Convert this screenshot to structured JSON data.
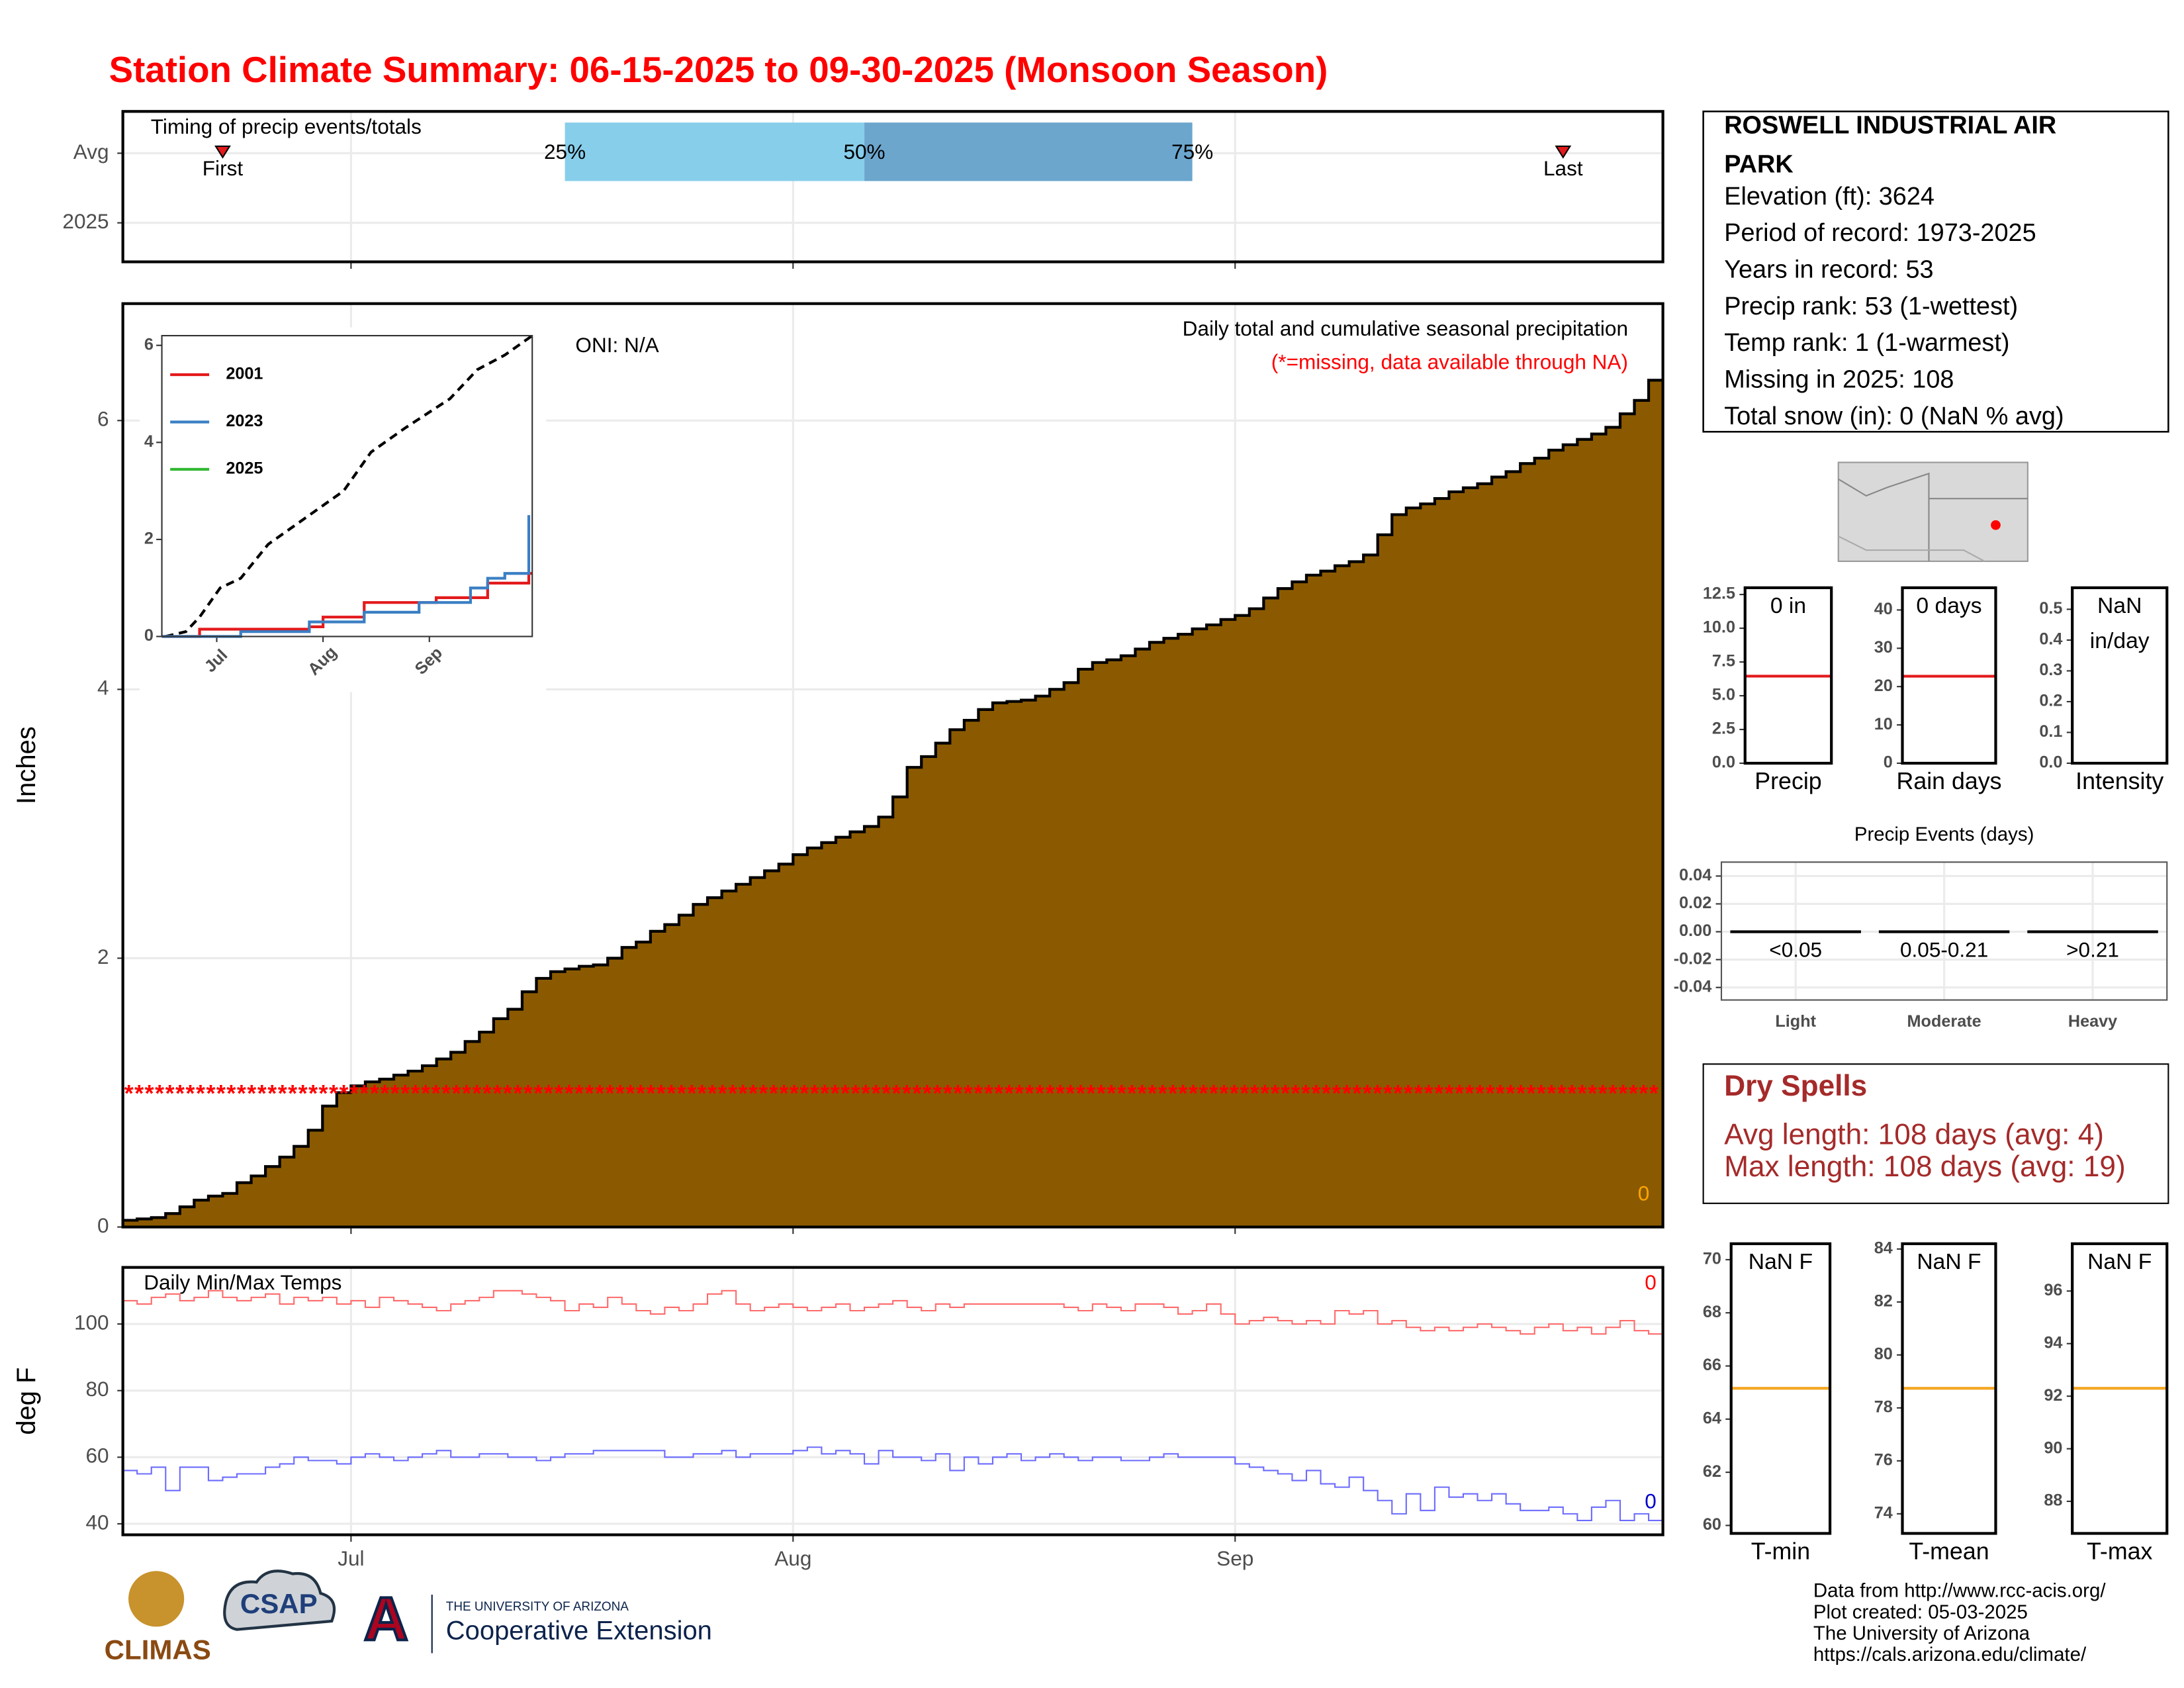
{
  "title": "Station Climate Summary: 06-15-2025 to 09-30-2025 (Monsoon Season)",
  "chart_data": [
    {
      "type": "timing",
      "title": "Timing of precip events/totals",
      "categories": [
        "Avg",
        "2025"
      ],
      "xlim": [
        0,
        108
      ],
      "markers": [
        {
          "label": "First",
          "value": 7
        },
        {
          "label": "Last",
          "value": 101
        }
      ],
      "quartiles": [
        {
          "label": "25%",
          "value": 31
        },
        {
          "label": "50%",
          "value": 52
        },
        {
          "label": "75%",
          "value": 75
        }
      ],
      "colors": [
        "#87ceeb",
        "#6ca6cd"
      ],
      "marker_color": "#e31a1c"
    },
    {
      "type": "step-area",
      "ylabel": "Inches",
      "xlim": [
        0,
        108
      ],
      "ylim": [
        0,
        6.87
      ],
      "yticks": [
        0,
        2,
        4,
        6
      ],
      "grid": true,
      "color": "#8b5a00",
      "annotation": "Daily total and cumulative seasonal precipitation",
      "note": "(*=missing, data available through NA)",
      "oni": "ONI: N/A",
      "missing": {
        "symbol": "*",
        "value": 1
      },
      "count_label": "0",
      "values": [
        0.05,
        0.06,
        0.07,
        0.1,
        0.15,
        0.2,
        0.23,
        0.25,
        0.33,
        0.38,
        0.45,
        0.52,
        0.6,
        0.72,
        0.9,
        1.0,
        1.05,
        1.08,
        1.1,
        1.13,
        1.16,
        1.2,
        1.25,
        1.3,
        1.38,
        1.45,
        1.55,
        1.62,
        1.75,
        1.85,
        1.9,
        1.92,
        1.94,
        1.95,
        2.0,
        2.08,
        2.12,
        2.2,
        2.25,
        2.32,
        2.4,
        2.45,
        2.5,
        2.55,
        2.6,
        2.65,
        2.7,
        2.77,
        2.82,
        2.86,
        2.9,
        2.94,
        2.98,
        3.05,
        3.2,
        3.42,
        3.5,
        3.6,
        3.7,
        3.77,
        3.85,
        3.9,
        3.91,
        3.92,
        3.95,
        4.0,
        4.05,
        4.15,
        4.2,
        4.22,
        4.25,
        4.3,
        4.35,
        4.38,
        4.41,
        4.45,
        4.48,
        4.52,
        4.55,
        4.6,
        4.68,
        4.75,
        4.8,
        4.85,
        4.88,
        4.92,
        4.95,
        5.0,
        5.15,
        5.3,
        5.35,
        5.38,
        5.42,
        5.47,
        5.5,
        5.53,
        5.58,
        5.62,
        5.68,
        5.72,
        5.78,
        5.82,
        5.86,
        5.9,
        5.95,
        6.05,
        6.15,
        6.3
      ]
    },
    {
      "type": "line",
      "xlim": [
        0,
        108
      ],
      "ylim": [
        0,
        6.2
      ],
      "yticks": [
        0,
        2,
        4,
        6
      ],
      "xticks": [
        {
          "value": 16,
          "label": "Jul"
        },
        {
          "value": 47,
          "label": "Aug"
        },
        {
          "value": 78,
          "label": "Sep"
        }
      ],
      "average": {
        "color": "#000000",
        "x": [
          1,
          7,
          11,
          17,
          23,
          31,
          39,
          47,
          53,
          61,
          71,
          84,
          92,
          100,
          108
        ],
        "values": [
          0,
          0.1,
          0.4,
          1.0,
          1.2,
          1.9,
          2.3,
          2.7,
          3.0,
          3.8,
          4.3,
          4.9,
          5.5,
          5.8,
          6.2
        ]
      },
      "series": [
        {
          "name": "2001",
          "color": "#e31a1c",
          "x": [
            0,
            11,
            43,
            47,
            59,
            80,
            95,
            107,
            108
          ],
          "values": [
            0,
            0.15,
            0.2,
            0.4,
            0.7,
            0.8,
            1.1,
            1.3,
            1.3
          ]
        },
        {
          "name": "2023",
          "color": "#3a7fc4",
          "x": [
            0,
            23,
            43,
            59,
            75,
            90,
            95,
            100,
            107
          ],
          "values": [
            0,
            0.1,
            0.3,
            0.5,
            0.7,
            1.0,
            1.2,
            1.3,
            2.5
          ]
        },
        {
          "name": "2025",
          "color": "#33b833",
          "x": [],
          "values": []
        }
      ]
    },
    {
      "type": "step-line",
      "title": "Daily Min/Max Temps",
      "ylabel": "deg F",
      "xlim": [
        0,
        108
      ],
      "ylim": [
        36.7,
        117
      ],
      "yticks": [
        40,
        60,
        80,
        100
      ],
      "grid": true,
      "xticks": [
        {
          "value": 16,
          "label": "Jul"
        },
        {
          "value": 47,
          "label": "Aug"
        },
        {
          "value": 78,
          "label": "Sep"
        }
      ],
      "series": [
        {
          "color": "#ff6b6b",
          "end_label": "0",
          "values": [
            107,
            106,
            108,
            109,
            107,
            108,
            110,
            108,
            107,
            108,
            109,
            106,
            108,
            107,
            108,
            106,
            107,
            105,
            108,
            107,
            106,
            105,
            104,
            106,
            107,
            108,
            110,
            110,
            109,
            108,
            107,
            104,
            106,
            105,
            108,
            106,
            104,
            103,
            105,
            104,
            106,
            109,
            110,
            106,
            104,
            105,
            106,
            105,
            104,
            105,
            106,
            104,
            105,
            106,
            107,
            105,
            104,
            106,
            105,
            106,
            106,
            106,
            106,
            106,
            106,
            106,
            105,
            104,
            106,
            105,
            104,
            106,
            106,
            105,
            103,
            104,
            106,
            103,
            100,
            101,
            102,
            101,
            100,
            101,
            100,
            104,
            103,
            104,
            100,
            101,
            99,
            98,
            99,
            98,
            99,
            100,
            99,
            98,
            97,
            99,
            100,
            98,
            99,
            97,
            99,
            101,
            98,
            97
          ]
        },
        {
          "color": "#6b6bff",
          "end_label": "0",
          "values": [
            56,
            55,
            57,
            50,
            57,
            57,
            53,
            54,
            55,
            55,
            57,
            58,
            60,
            59,
            59,
            58,
            60,
            61,
            60,
            59,
            60,
            61,
            62,
            60,
            60,
            61,
            61,
            60,
            60,
            59,
            60,
            61,
            61,
            62,
            62,
            62,
            62,
            62,
            60,
            60,
            61,
            61,
            62,
            60,
            61,
            61,
            61,
            62,
            63,
            61,
            62,
            61,
            58,
            62,
            60,
            60,
            59,
            61,
            56,
            60,
            58,
            60,
            61,
            59,
            60,
            61,
            60,
            59,
            60,
            60,
            59,
            59,
            60,
            61,
            60,
            60,
            60,
            60,
            58,
            57,
            56,
            55,
            53,
            56,
            52,
            51,
            54,
            50,
            47,
            43,
            49,
            44,
            51,
            48,
            49,
            47,
            49,
            46,
            44,
            44,
            45,
            43,
            41,
            45,
            47,
            41,
            43,
            41
          ]
        }
      ]
    },
    {
      "type": "gauge",
      "title": "Precip",
      "label": [
        "0 in"
      ],
      "ylim": [
        0,
        13
      ],
      "color": "#e31a1c",
      "values": [
        6.45
      ],
      "yticks": [
        {
          "value": 0,
          "label": "0.0"
        },
        2.5,
        {
          "value": 5,
          "label": "5.0"
        },
        7.5,
        {
          "value": 10,
          "label": "10.0"
        },
        12.5
      ]
    },
    {
      "type": "gauge",
      "title": "Rain days",
      "label": [
        "0 days"
      ],
      "ylim": [
        0,
        45.8
      ],
      "color": "#e31a1c",
      "values": [
        22.7
      ],
      "yticks": [
        0,
        10,
        20,
        30,
        40
      ]
    },
    {
      "type": "gauge",
      "title": "Intensity",
      "label": [
        "NaN",
        "in/day"
      ],
      "ylim": [
        0,
        0.57
      ],
      "color": "#e31a1c",
      "values": [
        null
      ],
      "yticks": [
        {
          "value": 0,
          "label": "0.0"
        },
        0.1,
        0.2,
        0.3,
        0.4,
        0.5
      ]
    },
    {
      "type": "bar",
      "title": "Precip Events (days)",
      "categories": [
        "<0.05",
        "0.05-0.21",
        ">0.21"
      ],
      "groups": [
        "Light",
        "Moderate",
        "Heavy"
      ],
      "values": [
        0,
        0,
        0
      ],
      "color": "#000000",
      "ylim": [
        -0.049,
        0.05
      ],
      "grid": true,
      "yticks": [
        -0.04,
        -0.02,
        {
          "value": 0,
          "label": "0.00"
        },
        0.02,
        0.04
      ]
    },
    {
      "type": "gauge",
      "title": "T-min",
      "label": [
        "NaN F"
      ],
      "ylim": [
        59.7,
        70.6
      ],
      "color": "#f5a623",
      "values": [
        65.16
      ],
      "yticks": [
        60,
        62,
        64,
        66,
        68,
        70
      ]
    },
    {
      "type": "gauge",
      "title": "T-mean",
      "label": [
        "NaN F"
      ],
      "ylim": [
        73.26,
        84.2
      ],
      "color": "#f5a623",
      "values": [
        78.74
      ],
      "yticks": [
        74,
        76,
        78,
        80,
        82,
        84
      ]
    },
    {
      "type": "gauge",
      "title": "T-max",
      "label": [
        "NaN F"
      ],
      "ylim": [
        86.78,
        97.8
      ],
      "color": "#f5a623",
      "values": [
        92.3
      ],
      "yticks": [
        88,
        90,
        92,
        94,
        96
      ]
    }
  ],
  "station": {
    "name": [
      "ROSWELL INDUSTRIAL AIR",
      "PARK"
    ],
    "lines": [
      "Elevation (ft): 3624",
      "Period of record: 1973-2025",
      "Years in record: 53",
      "Precip rank: 53 (1-wettest)",
      "Temp rank: 1 (1-warmest)",
      "Missing in 2025: 108",
      "Total snow (in): 0 (NaN % avg)"
    ]
  },
  "dry_spells": {
    "title": "Dry Spells",
    "lines": [
      "Avg length: 108 days (avg: 4)",
      "Max length: 108 days (avg: 19)"
    ]
  },
  "credits": [
    "Data from http://www.rcc-acis.org/",
    "Plot created: 05-03-2025",
    "The University of Arizona",
    "https://cals.arizona.edu/climate/"
  ],
  "logos": {
    "climas": "CLIMAS",
    "csap": "CSAP",
    "ua_letter": "A",
    "ua_top": "THE UNIVERSITY OF ARIZONA",
    "ua_bottom": "Cooperative Extension"
  }
}
